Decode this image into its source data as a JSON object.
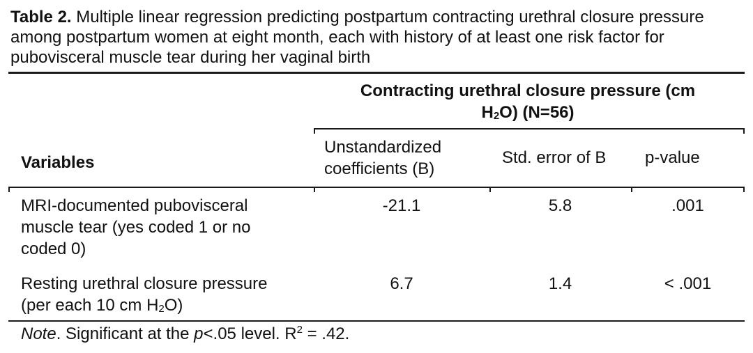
{
  "caption": {
    "label": "Table 2.",
    "text": " Multiple linear regression predicting postpartum contracting urethral closure pressure among postpartum women at eight month, each with history of at least one risk factor for pubovisceral muscle tear during her vaginal birth"
  },
  "header": {
    "group_line1": "Contracting urethral closure pressure  (cm",
    "group_line2_pre": "H",
    "group_line2_sub": "2",
    "group_line2_post": "O) (N=56)",
    "variables": "Variables",
    "col_b_line1": "Unstandardized",
    "col_b_line2": "coefficients (B)",
    "col_se": "Std. error of B",
    "col_p": "p-value"
  },
  "rows": [
    {
      "variable_line1": "MRI-documented pubovisceral",
      "variable_line2": "muscle tear (yes coded 1 or no",
      "variable_line3": "coded 0)",
      "b": "-21.1",
      "se": "5.8",
      "p": ".001"
    },
    {
      "variable_line1": "Resting urethral closure pressure",
      "variable_line2_pre": "(per each 10 cm H",
      "variable_line2_sub": "2",
      "variable_line2_post": "O)",
      "b": "6.7",
      "se": "1.4",
      "p": "< .001"
    }
  ],
  "note": {
    "italic_label": "Note",
    "text1": ". Significant at the ",
    "p_symbol": "p",
    "text2": "<.05 level. R",
    "r_sup": "2",
    "text3": " = .42."
  }
}
